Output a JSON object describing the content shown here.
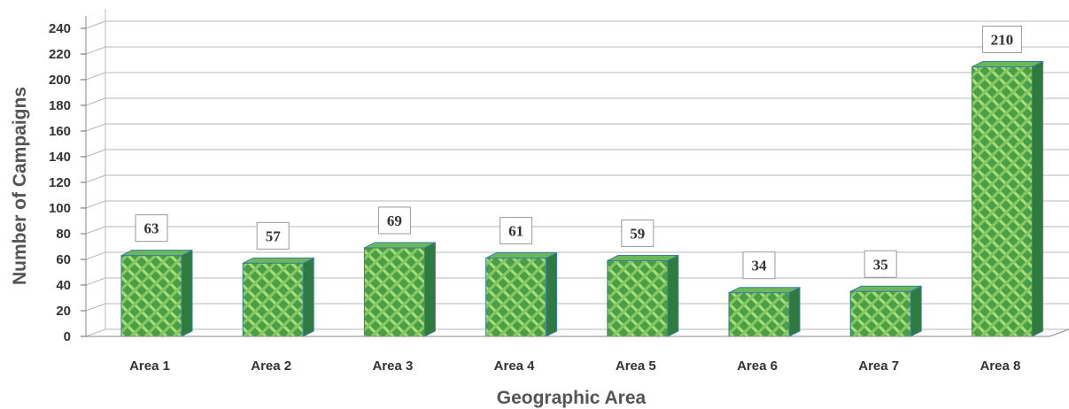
{
  "chart_data": {
    "type": "bar",
    "title": "",
    "xlabel": "Geographic Area",
    "ylabel": "Number of Campaigns",
    "categories": [
      "Area 1",
      "Area 2",
      "Area 3",
      "Area 4",
      "Area 5",
      "Area 6",
      "Area 7",
      "Area 8"
    ],
    "values": [
      63,
      57,
      69,
      61,
      59,
      34,
      35,
      210
    ],
    "data_labels": [
      "63",
      "57",
      "69",
      "61",
      "59",
      "34",
      "35",
      "210"
    ],
    "ylim": [
      0,
      240
    ],
    "yticks": [
      "0",
      "20",
      "40",
      "60",
      "80",
      "100",
      "120",
      "140",
      "160",
      "180",
      "200",
      "220",
      "240"
    ],
    "grid": true,
    "legend": "none",
    "style": "3d-bars",
    "colors": {
      "bar_front": "#4a9e45",
      "bar_pattern": "#a6de78",
      "bar_side": "#2f7a3f",
      "bar_edge": "#3a7fa0",
      "grid": "#b8b8b8",
      "axis_text": "#333333"
    }
  }
}
